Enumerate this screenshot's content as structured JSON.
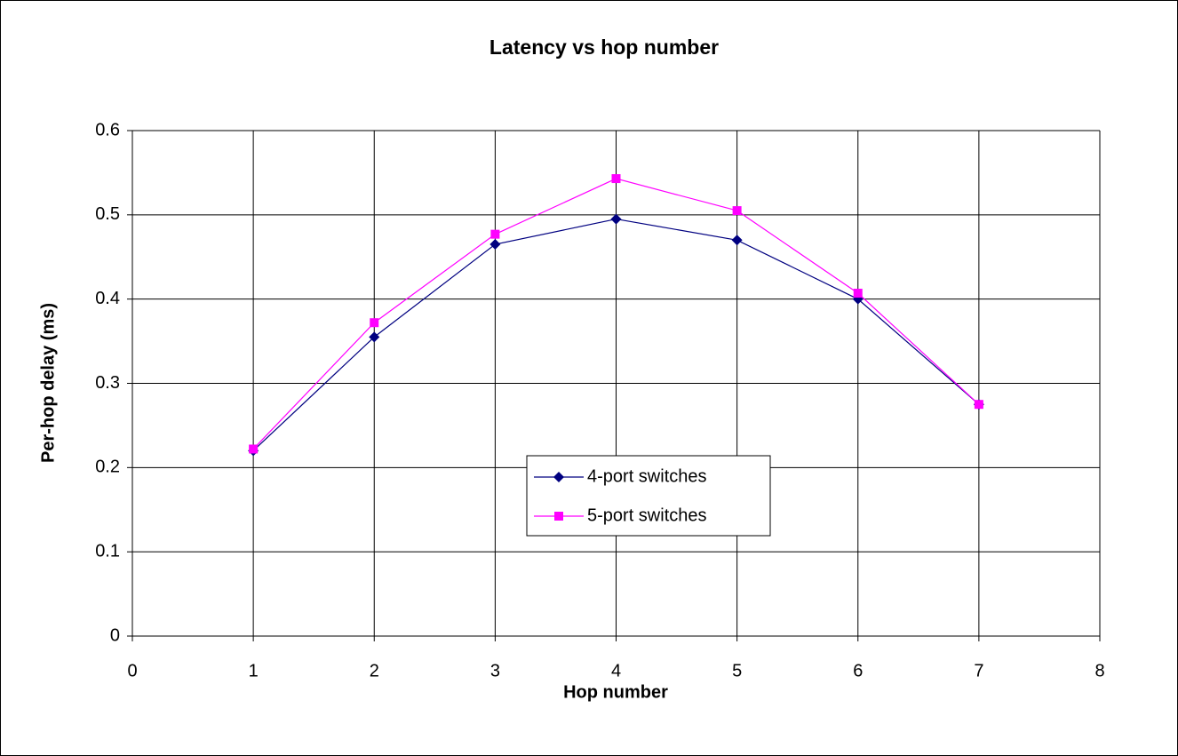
{
  "chart_data": {
    "type": "line",
    "title": "Latency vs hop number",
    "x_label": "Hop number",
    "y_label": "Per-hop delay (ms)",
    "x": [
      1,
      2,
      3,
      4,
      5,
      6,
      7
    ],
    "series": [
      {
        "name": "4-port switches",
        "color": "#000080",
        "marker": "diamond",
        "values": [
          0.22,
          0.355,
          0.465,
          0.495,
          0.47,
          0.4,
          0.275
        ]
      },
      {
        "name": "5-port switches",
        "color": "#ff00ff",
        "marker": "square",
        "values": [
          0.222,
          0.372,
          0.477,
          0.543,
          0.505,
          0.407,
          0.275
        ]
      }
    ],
    "xlim": [
      0,
      8
    ],
    "xticks": [
      0,
      1,
      2,
      3,
      4,
      5,
      6,
      7,
      8
    ],
    "ylim": [
      0,
      0.6
    ],
    "yticks": [
      0,
      0.1,
      0.2,
      0.3,
      0.4,
      0.5,
      0.6
    ],
    "grid": true
  }
}
